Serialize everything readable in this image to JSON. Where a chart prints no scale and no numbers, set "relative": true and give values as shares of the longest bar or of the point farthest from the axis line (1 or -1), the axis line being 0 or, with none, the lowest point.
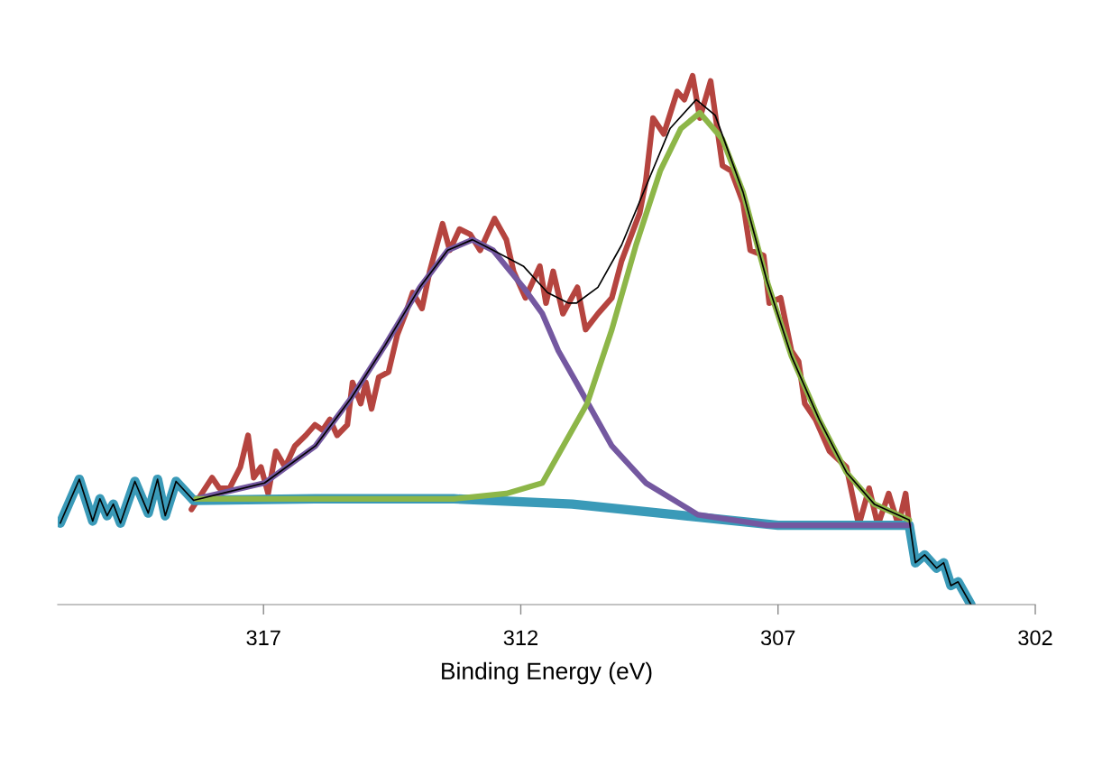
{
  "chart_data": {
    "type": "line",
    "relative": true,
    "xlabel": "Binding Energy (eV)",
    "xlim": [
      321,
      302
    ],
    "xticks": [
      317,
      312,
      307,
      302
    ],
    "grid": false,
    "legend": false,
    "marker": "none",
    "line_style": "solid",
    "series": [
      {
        "color": "#b5443f",
        "x": [
          318.4,
          318.0,
          317.86,
          317.66,
          317.45,
          317.3,
          317.19,
          317.05,
          316.91,
          316.76,
          316.58,
          316.39,
          316.18,
          316.0,
          315.85,
          315.71,
          315.57,
          315.37,
          315.27,
          315.11,
          315.01,
          314.9,
          314.76,
          314.57,
          314.4,
          314.24,
          314.1,
          313.92,
          313.77,
          313.52,
          313.38,
          313.19,
          312.98,
          312.79,
          312.51,
          312.28,
          312.14,
          311.91,
          311.63,
          311.51,
          311.37,
          311.18,
          310.9,
          310.74,
          310.5,
          310.23,
          310.04,
          309.69,
          309.57,
          309.43,
          309.22,
          308.96,
          308.82,
          308.66,
          308.52,
          308.31,
          308.08,
          307.91,
          307.68,
          307.54,
          307.28,
          307.17,
          306.95,
          306.74,
          306.6,
          306.48,
          306.27,
          306.0,
          305.67,
          305.43,
          305.23,
          305.06,
          304.85,
          304.66,
          304.52,
          304.45
        ],
        "values": [
          0.18,
          0.24,
          0.22,
          0.22,
          0.26,
          0.32,
          0.24,
          0.26,
          0.21,
          0.29,
          0.26,
          0.3,
          0.32,
          0.34,
          0.33,
          0.35,
          0.32,
          0.34,
          0.42,
          0.38,
          0.42,
          0.37,
          0.43,
          0.44,
          0.51,
          0.55,
          0.59,
          0.56,
          0.63,
          0.72,
          0.67,
          0.71,
          0.7,
          0.67,
          0.73,
          0.69,
          0.63,
          0.58,
          0.64,
          0.57,
          0.63,
          0.55,
          0.6,
          0.52,
          0.55,
          0.58,
          0.65,
          0.74,
          0.8,
          0.92,
          0.89,
          0.97,
          0.955,
          1.0,
          0.92,
          0.99,
          0.83,
          0.82,
          0.76,
          0.67,
          0.66,
          0.57,
          0.58,
          0.48,
          0.46,
          0.38,
          0.35,
          0.29,
          0.26,
          0.15,
          0.22,
          0.15,
          0.21,
          0.15,
          0.21,
          0.15
        ]
      },
      {
        "color": "#3a9ab8",
        "x": [
          320.95,
          320.58,
          320.32,
          320.18,
          320.04,
          319.92,
          319.78,
          319.5,
          319.24,
          319.06,
          318.91,
          318.7,
          318.36,
          316.0,
          313.3,
          311.0,
          309.0,
          307.0,
          305.5,
          304.45,
          304.33,
          304.15,
          303.92,
          303.78,
          303.64,
          303.5,
          303.25
        ],
        "values": [
          0.154,
          0.237,
          0.158,
          0.2,
          0.168,
          0.19,
          0.154,
          0.233,
          0.173,
          0.237,
          0.168,
          0.233,
          0.197,
          0.2,
          0.2,
          0.19,
          0.17,
          0.15,
          0.15,
          0.15,
          0.079,
          0.094,
          0.069,
          0.079,
          0.036,
          0.043,
          0.0
        ]
      },
      {
        "color": "#7458a0",
        "x": [
          318.31,
          316.98,
          315.99,
          315.3,
          314.64,
          313.96,
          313.42,
          312.94,
          312.54,
          311.95,
          311.58,
          311.27,
          310.92,
          310.23,
          309.57,
          308.56,
          307.21,
          304.45
        ],
        "values": [
          0.2,
          0.23,
          0.3,
          0.39,
          0.49,
          0.6,
          0.67,
          0.69,
          0.67,
          0.6,
          0.55,
          0.48,
          0.42,
          0.3,
          0.23,
          0.17,
          0.15,
          0.15
        ]
      },
      {
        "color": "#8db648",
        "x": [
          318.31,
          313.3,
          312.28,
          311.58,
          310.71,
          310.23,
          309.76,
          309.29,
          308.89,
          308.52,
          308.08,
          307.68,
          307.21,
          306.74,
          306.2,
          305.67,
          305.13,
          304.45
        ],
        "values": [
          0.2,
          0.2,
          0.21,
          0.23,
          0.38,
          0.52,
          0.68,
          0.82,
          0.9,
          0.93,
          0.88,
          0.78,
          0.61,
          0.47,
          0.35,
          0.25,
          0.19,
          0.16
        ]
      },
      {
        "color": "#000000",
        "x": [
          320.95,
          320.58,
          320.32,
          320.18,
          320.04,
          319.92,
          319.78,
          319.5,
          319.24,
          319.06,
          318.91,
          318.7,
          318.36,
          316.98,
          315.99,
          315.3,
          314.64,
          313.96,
          313.42,
          312.94,
          312.54,
          311.95,
          311.48,
          311.07,
          310.92,
          310.5,
          310.04,
          309.57,
          309.1,
          308.59,
          308.22,
          307.68,
          307.21,
          306.74,
          306.2,
          305.67,
          305.13,
          304.45,
          304.33,
          304.15,
          303.92,
          303.78,
          303.64,
          303.5,
          303.25
        ],
        "values": [
          0.154,
          0.237,
          0.158,
          0.2,
          0.168,
          0.19,
          0.154,
          0.233,
          0.173,
          0.237,
          0.168,
          0.233,
          0.197,
          0.23,
          0.3,
          0.39,
          0.49,
          0.6,
          0.67,
          0.69,
          0.67,
          0.64,
          0.59,
          0.57,
          0.57,
          0.6,
          0.68,
          0.79,
          0.9,
          0.955,
          0.925,
          0.78,
          0.61,
          0.47,
          0.35,
          0.25,
          0.19,
          0.16,
          0.079,
          0.094,
          0.069,
          0.079,
          0.036,
          0.043,
          0.0
        ]
      }
    ]
  }
}
